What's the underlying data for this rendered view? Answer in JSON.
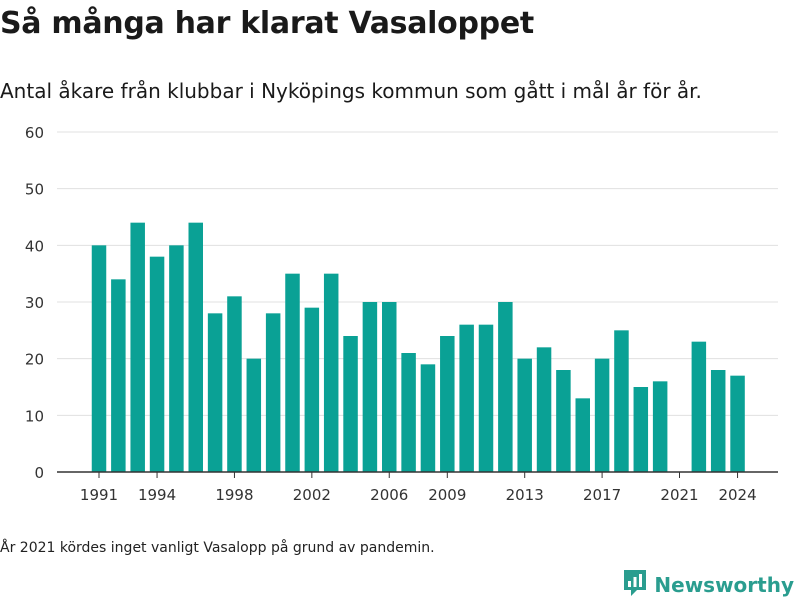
{
  "header": {
    "title": "Så många har klarat Vasaloppet",
    "subtitle": "Antal åkare från klubbar i Nyköpings kommun som gått i mål år för år."
  },
  "footnote": "År 2021 kördes inget vanligt Vasalopp på grund av pandemin.",
  "brand": {
    "name": "Newsworthy",
    "icon": "newsworthy-logo-icon"
  },
  "colors": {
    "bar": "#0aa195",
    "grid": "#e0e0e0",
    "axis": "#333333"
  },
  "chart_data": {
    "type": "bar",
    "title": "Så många har klarat Vasaloppet",
    "subtitle": "Antal åkare från klubbar i Nyköpings kommun som gått i mål år för år.",
    "xlabel": "",
    "ylabel": "",
    "ylim": [
      0,
      60
    ],
    "yticks": [
      0,
      10,
      20,
      30,
      40,
      50,
      60
    ],
    "xticks": [
      "1991",
      "1994",
      "1998",
      "2002",
      "2006",
      "2009",
      "2013",
      "2017",
      "2021",
      "2024"
    ],
    "grid": true,
    "legend": "none",
    "categories": [
      "1991",
      "1992",
      "1993",
      "1994",
      "1995",
      "1996",
      "1997",
      "1998",
      "1999",
      "2000",
      "2001",
      "2002",
      "2003",
      "2004",
      "2005",
      "2006",
      "2007",
      "2008",
      "2009",
      "2010",
      "2011",
      "2012",
      "2013",
      "2014",
      "2015",
      "2016",
      "2017",
      "2018",
      "2019",
      "2020",
      "2021",
      "2022",
      "2023",
      "2024"
    ],
    "values": [
      40,
      34,
      44,
      38,
      40,
      44,
      28,
      31,
      20,
      28,
      35,
      29,
      35,
      24,
      30,
      30,
      21,
      19,
      24,
      26,
      26,
      30,
      20,
      22,
      18,
      13,
      20,
      25,
      15,
      16,
      0,
      23,
      18,
      17
    ]
  }
}
